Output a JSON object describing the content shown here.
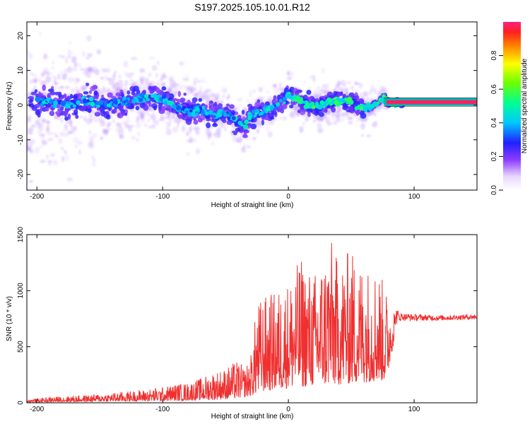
{
  "figure": {
    "title": "S197.2025.105.10.01.R12"
  },
  "chart_data": [
    {
      "type": "heatmap",
      "xlabel": "Height of straight line (km)",
      "ylabel": "Frequency (Hz)",
      "xlim": [
        -208,
        150
      ],
      "ylim": [
        -24.5,
        24
      ],
      "xticks": [
        -200,
        -100,
        0,
        100
      ],
      "yticks": [
        -20,
        -10,
        0,
        10,
        20
      ],
      "colorbar": {
        "label": "Normalized spectral amplitude",
        "range": [
          0,
          1
        ],
        "ticks": [
          0.0,
          0.2,
          0.4,
          0.6,
          0.8
        ]
      },
      "ridge": {
        "x": [
          -205,
          -190,
          -175,
          -160,
          -145,
          -130,
          -115,
          -100,
          -90,
          -80,
          -70,
          -60,
          -50,
          -40,
          -35,
          -30,
          -20,
          -10,
          0,
          5,
          15,
          25,
          35,
          45,
          55,
          60,
          70,
          75,
          80,
          90,
          100,
          120,
          150
        ],
        "y": [
          1,
          1,
          0,
          1,
          0,
          1,
          2,
          2,
          0,
          -2,
          -1,
          -3,
          -2,
          -5,
          -6,
          -3,
          -2,
          0,
          3,
          2,
          0,
          0,
          1,
          1,
          0,
          -1,
          0,
          2,
          1,
          0.5,
          0.5,
          0.5,
          0.5
        ]
      },
      "grid": false
    },
    {
      "type": "line",
      "xlabel": "Height of straight line (km)",
      "ylabel": "SNR (10 * v/v)",
      "xlim": [
        -208,
        150
      ],
      "ylim": [
        0,
        1500
      ],
      "xticks": [
        -200,
        -100,
        0,
        100
      ],
      "yticks": [
        0,
        500,
        1000,
        1500
      ],
      "series": [
        {
          "color": "#f03030",
          "envelope_x": [
            -208,
            -180,
            -160,
            -140,
            -120,
            -100,
            -90,
            -80,
            -70,
            -60,
            -50,
            -45,
            -40,
            -35,
            -30,
            -25,
            -20,
            -10,
            0,
            10,
            20,
            30,
            33,
            40,
            50,
            55,
            60,
            65,
            70,
            75,
            80,
            85,
            90,
            100,
            120,
            150
          ],
          "envelope_max": [
            30,
            60,
            70,
            90,
            110,
            140,
            170,
            180,
            220,
            280,
            310,
            350,
            380,
            310,
            420,
            900,
            950,
            1000,
            1100,
            1300,
            1150,
            1380,
            1500,
            1250,
            1400,
            1250,
            1300,
            1200,
            1250,
            1100,
            950,
            850,
            800,
            790,
            780,
            790
          ],
          "baseline_x": [
            -208,
            -150,
            -100,
            -60,
            -40,
            -30,
            -20,
            0,
            20,
            40,
            60,
            78,
            85,
            90,
            100,
            150
          ],
          "baseline_y": [
            5,
            10,
            15,
            25,
            40,
            60,
            100,
            130,
            150,
            160,
            180,
            200,
            600,
            700,
            700,
            720
          ]
        }
      ],
      "grid": false
    }
  ]
}
